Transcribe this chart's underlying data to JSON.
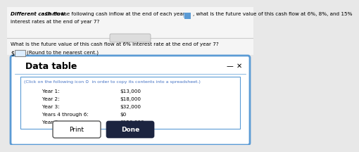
{
  "title_bold": "Different cash flow.",
  "title_rest": " Given the following cash inflow at the end of each year,",
  "icon_text": "⧉",
  "title_rest2": ", what is the future value of this cash flow at 6%, 8%, and 15%",
  "title_line2": "interest rates at the end of year 7?",
  "question_line1": "What is the future value of this cash flow at 6% interest rate at the end of year 7?",
  "question_line2": "(Round to the nearest cent.)",
  "dollar_label": "$",
  "panel_title": "Data table",
  "panel_subtitle": "(Click on the following icon ⊙  in order to copy its contents into a spreadsheet.)",
  "table_rows": [
    [
      "Year 1:",
      "$13,000"
    ],
    [
      "Year 2:",
      "$18,000"
    ],
    [
      "Year 3:",
      "$32,000"
    ],
    [
      "Years 4 through 6:",
      "$0"
    ],
    [
      "Year 7:",
      "$150,000"
    ]
  ],
  "btn_print": "Print",
  "btn_done": "Done",
  "bg_color": "#e8e8e8",
  "panel_bg": "#ffffff",
  "panel_border_color": "#5b9bd5",
  "inner_box_border": "#5b9bd5",
  "subtitle_color": "#4472c4",
  "done_btn_bg": "#1c2440",
  "done_btn_fg": "#ffffff",
  "print_btn_bg": "#ffffff",
  "print_btn_fg": "#000000",
  "title_line_color": "#cccccc"
}
